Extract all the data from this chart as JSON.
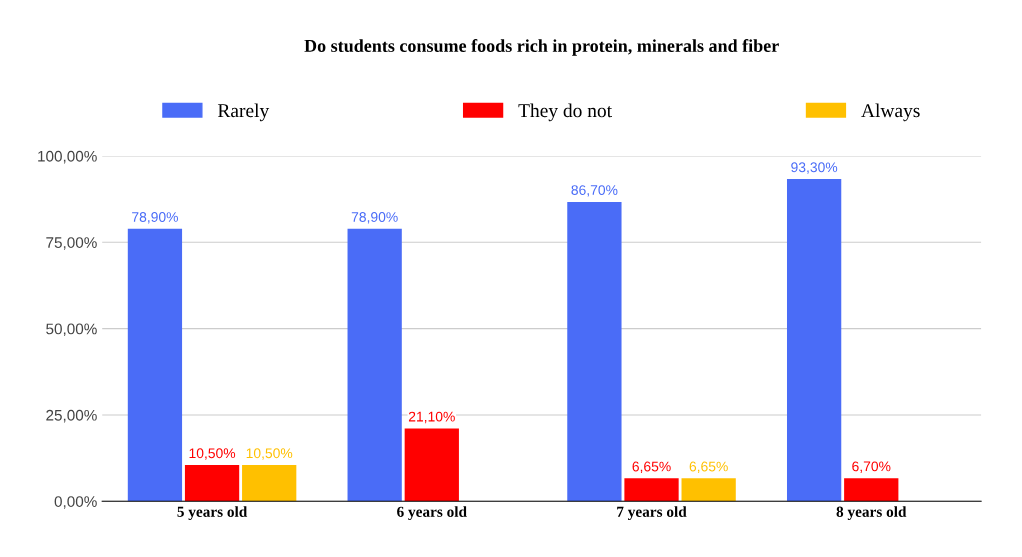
{
  "chart_data": {
    "type": "bar",
    "title": "Do students consume foods rich in protein, minerals and fiber",
    "categories": [
      "5 years old",
      "6 years old",
      "7 years old",
      "8 years old"
    ],
    "series": [
      {
        "name": "Rarely",
        "color": "#4a6cf7",
        "values": [
          78.9,
          78.9,
          86.7,
          93.3
        ],
        "value_labels": [
          "78,90%",
          "78,90%",
          "86,70%",
          "93,30%"
        ]
      },
      {
        "name": "They do not",
        "color": "#ff0000",
        "values": [
          10.5,
          21.1,
          6.65,
          6.7
        ],
        "value_labels": [
          "10,50%",
          "21,10%",
          "6,65%",
          "6,70%"
        ]
      },
      {
        "name": "Always",
        "color": "#ffc000",
        "values": [
          10.5,
          null,
          6.65,
          null
        ],
        "value_labels": [
          "10,50%",
          null,
          "6,65%",
          null
        ]
      }
    ],
    "ylim": [
      0,
      100
    ],
    "yticks": [
      {
        "value": 0,
        "label": "0,00%"
      },
      {
        "value": 25,
        "label": "25,00%"
      },
      {
        "value": 50,
        "label": "50,00%"
      },
      {
        "value": 75,
        "label": "75,00%"
      },
      {
        "value": 100,
        "label": "100,00%"
      }
    ],
    "grid": "y",
    "legend": "top"
  }
}
